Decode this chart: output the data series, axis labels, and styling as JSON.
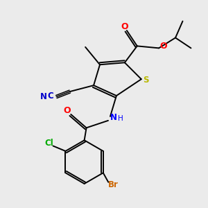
{
  "background_color": "#ebebeb",
  "bond_color": "#000000",
  "atom_colors": {
    "S": "#b8b800",
    "O": "#ff0000",
    "N": "#0000ff",
    "C": "#000000",
    "Br": "#cc6600",
    "Cl": "#00aa00",
    "CN": "#0000cc"
  },
  "figsize": [
    3.0,
    3.0
  ],
  "dpi": 100
}
